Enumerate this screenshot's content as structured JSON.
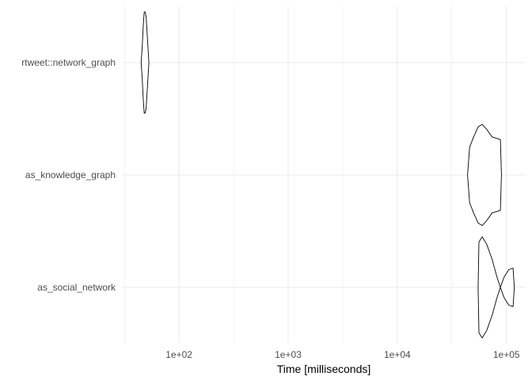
{
  "chart_data": {
    "type": "violin",
    "xlabel": "Time [milliseconds]",
    "ylabel": "",
    "x_scale": "log10",
    "xlim": [
      30,
      150000
    ],
    "x_ticks": [
      {
        "value": 100,
        "label": "1e+02"
      },
      {
        "value": 1000,
        "label": "1e+03"
      },
      {
        "value": 10000,
        "label": "1e+04"
      },
      {
        "value": 100000,
        "label": "1e+05"
      }
    ],
    "categories": [
      "rtweet::network_graph",
      "as_knowledge_graph",
      "as_social_network"
    ],
    "series": [
      {
        "category": "rtweet::network_graph",
        "profile": [
          {
            "t": 45,
            "w": 0.0
          },
          {
            "t": 46,
            "w": 0.3
          },
          {
            "t": 47,
            "w": 0.7
          },
          {
            "t": 48,
            "w": 1.0
          },
          {
            "t": 49,
            "w": 1.0
          },
          {
            "t": 50,
            "w": 0.9
          },
          {
            "t": 51,
            "w": 0.6
          },
          {
            "t": 52,
            "w": 0.3
          },
          {
            "t": 53,
            "w": 0.0
          }
        ]
      },
      {
        "category": "as_knowledge_graph",
        "profile": [
          {
            "t": 44000,
            "w": 0.0
          },
          {
            "t": 46000,
            "w": 0.55
          },
          {
            "t": 50000,
            "w": 0.75
          },
          {
            "t": 55000,
            "w": 0.95
          },
          {
            "t": 60000,
            "w": 1.0
          },
          {
            "t": 66000,
            "w": 0.9
          },
          {
            "t": 74000,
            "w": 0.75
          },
          {
            "t": 82000,
            "w": 0.72
          },
          {
            "t": 88000,
            "w": 0.7
          },
          {
            "t": 90000,
            "w": 0.0
          }
        ]
      },
      {
        "category": "as_social_network",
        "profile": [
          {
            "t": 55000,
            "w": 0.0
          },
          {
            "t": 56000,
            "w": 0.9
          },
          {
            "t": 60000,
            "w": 1.0
          },
          {
            "t": 66000,
            "w": 0.85
          },
          {
            "t": 74000,
            "w": 0.55
          },
          {
            "t": 82000,
            "w": 0.2
          },
          {
            "t": 88000,
            "w": 0.0
          },
          {
            "t": 95000,
            "w": 0.2
          },
          {
            "t": 105000,
            "w": 0.35
          },
          {
            "t": 115000,
            "w": 0.38
          },
          {
            "t": 118000,
            "w": 0.0
          }
        ]
      }
    ],
    "grid": true,
    "legend": "none"
  }
}
